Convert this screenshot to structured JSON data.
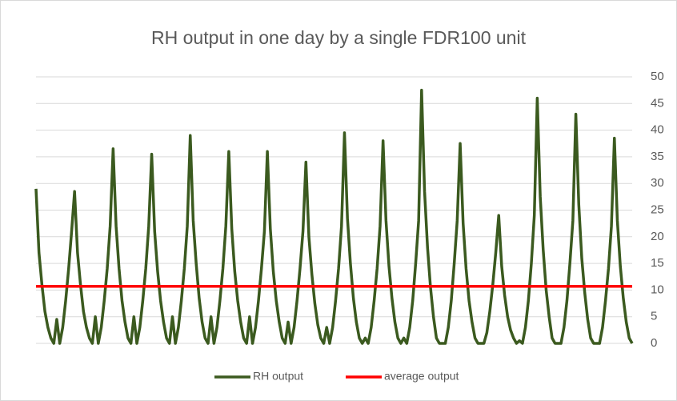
{
  "chart_data": {
    "type": "line",
    "title": "RH output in one day by a single FDR100 unit",
    "ylim": [
      0,
      50
    ],
    "yticks": [
      0,
      5,
      10,
      15,
      20,
      25,
      30,
      35,
      40,
      45,
      50
    ],
    "grid": true,
    "y_axis_side": "right",
    "legend": "bottom",
    "series": [
      {
        "name": "RH output",
        "color": "#3b5a1f",
        "values": [
          29,
          17,
          11,
          6,
          3,
          1,
          0,
          4.5,
          0,
          3,
          8,
          14,
          21,
          28.5,
          17,
          11,
          6,
          3,
          1,
          0,
          5,
          0,
          3,
          8,
          14,
          22,
          36.5,
          22,
          14,
          8,
          4,
          1,
          0,
          5,
          0,
          3,
          8,
          14,
          22,
          35.5,
          21,
          13.5,
          8,
          4,
          1,
          0,
          5,
          0,
          3,
          8,
          14,
          22,
          39,
          23,
          15,
          8.5,
          4,
          1,
          0,
          5,
          0,
          3,
          8,
          14,
          22,
          36,
          21.5,
          13.5,
          8,
          4,
          1,
          0,
          5,
          0,
          3,
          8,
          14,
          21,
          36,
          21.5,
          13.5,
          8,
          4,
          1,
          0,
          4,
          0,
          3,
          8,
          14,
          21,
          34,
          20,
          13,
          7.5,
          3.5,
          1,
          0,
          3,
          0,
          3,
          8,
          14,
          22,
          39.5,
          23.5,
          15,
          8.5,
          4,
          1,
          0,
          1,
          0,
          3,
          8,
          14,
          22,
          38,
          23,
          14.5,
          8.5,
          4,
          1,
          0,
          1,
          0,
          3,
          8,
          15,
          23,
          47.5,
          28.5,
          18,
          10.5,
          5,
          1,
          0,
          0,
          0,
          3,
          8,
          15,
          23,
          37.5,
          22.5,
          14,
          8,
          4,
          1,
          0,
          0,
          0,
          2,
          6,
          11,
          17,
          24,
          14.5,
          9,
          5,
          2.5,
          1,
          0,
          0.5,
          0,
          3,
          8,
          15,
          24,
          46,
          27.5,
          17.5,
          10,
          5,
          1,
          0,
          0,
          0,
          3,
          8,
          15,
          23,
          43,
          26,
          16,
          9.5,
          4.5,
          1,
          0,
          0,
          0,
          3,
          8,
          14,
          22,
          38.5,
          23,
          14.5,
          8.5,
          4,
          1,
          0
        ]
      },
      {
        "name": "average output",
        "color": "#ff0000",
        "value": 10.7
      }
    ]
  }
}
